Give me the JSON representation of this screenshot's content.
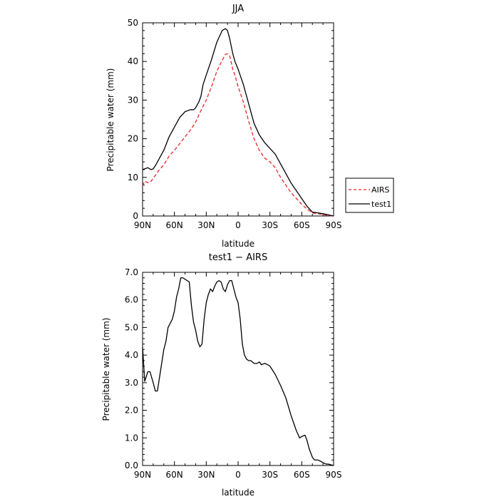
{
  "chart_data": [
    {
      "type": "line",
      "title": "JJA",
      "xlabel": "latitude",
      "ylabel": "Precipitable water (mm)",
      "xlim": [
        90,
        -90
      ],
      "ylim": [
        0,
        50
      ],
      "x_ticks": [
        90,
        60,
        30,
        0,
        -30,
        -60,
        -90
      ],
      "x_tick_labels": [
        "90N",
        "60N",
        "30N",
        "0",
        "30S",
        "60S",
        "90S"
      ],
      "y_ticks": [
        0,
        10,
        20,
        30,
        40,
        50
      ],
      "y_tick_labels": [
        "0",
        "10",
        "20",
        "30",
        "40",
        "50"
      ],
      "grid": false,
      "legend_position": "right",
      "series": [
        {
          "name": "AIRS",
          "color": "#e8262a",
          "dash": "dashed",
          "x": [
            90,
            88,
            85,
            82,
            78,
            75,
            70,
            65,
            60,
            55,
            50,
            45,
            40,
            35,
            30,
            25,
            20,
            15,
            12,
            10,
            8,
            5,
            3,
            0,
            -5,
            -10,
            -15,
            -20,
            -25,
            -30,
            -35,
            -40,
            -45,
            -50,
            -55,
            -60,
            -65,
            -70,
            -75,
            -80,
            -85,
            -90
          ],
          "y": [
            7.8,
            9,
            8.6,
            9,
            10.5,
            11.7,
            13.2,
            15.5,
            17,
            18.7,
            20.5,
            22.2,
            24.3,
            27.3,
            30,
            33.5,
            37.5,
            40.3,
            41.8,
            42,
            41.5,
            38,
            36.5,
            33.5,
            29.5,
            24.5,
            20,
            17,
            15,
            14,
            12.5,
            10,
            8,
            6,
            4.5,
            3,
            1.8,
            0.8,
            0.6,
            0.4,
            0.1,
            0
          ]
        },
        {
          "name": "test1",
          "color": "#000000",
          "dash": "solid",
          "x": [
            90,
            88,
            85,
            82,
            80,
            78,
            75,
            70,
            65,
            60,
            55,
            50,
            45,
            42,
            40,
            37,
            35,
            33,
            30,
            25,
            20,
            15,
            12,
            10,
            8,
            5,
            3,
            0,
            -5,
            -10,
            -15,
            -20,
            -25,
            -30,
            -35,
            -40,
            -45,
            -50,
            -55,
            -60,
            -65,
            -70,
            -75,
            -80,
            -85,
            -90
          ],
          "y": [
            12,
            12.2,
            12.5,
            12,
            12.2,
            13,
            14.5,
            17,
            20.5,
            23,
            25.5,
            27,
            27.5,
            27.5,
            28,
            29.5,
            31,
            34,
            36.5,
            40.5,
            45,
            48,
            48.5,
            48,
            46,
            42,
            40,
            38,
            34,
            29,
            24,
            21,
            19,
            17.5,
            16,
            13.5,
            11,
            8.5,
            6.5,
            4.5,
            2.5,
            1,
            0.8,
            0.6,
            0.3,
            0
          ]
        }
      ]
    },
    {
      "type": "line",
      "title": "test1 − AIRS",
      "xlabel": "latitude",
      "ylabel": "Precipitable water (mm)",
      "xlim": [
        90,
        -90
      ],
      "ylim": [
        0,
        7
      ],
      "x_ticks": [
        90,
        60,
        30,
        0,
        -30,
        -60,
        -90
      ],
      "x_tick_labels": [
        "90N",
        "60N",
        "30N",
        "0",
        "30S",
        "60S",
        "90S"
      ],
      "y_ticks": [
        0,
        1,
        2,
        3,
        4,
        5,
        6,
        7
      ],
      "y_tick_labels": [
        "0.0",
        "1.0",
        "2.0",
        "3.0",
        "4.0",
        "5.0",
        "6.0",
        "7.0"
      ],
      "grid": false,
      "series": [
        {
          "name": "",
          "color": "#000000",
          "dash": "solid",
          "x": [
            90,
            88,
            85,
            83,
            80,
            78,
            76,
            74,
            72,
            70,
            68,
            66,
            62,
            60,
            58,
            56,
            54,
            52,
            50,
            48,
            46,
            44,
            42,
            40,
            38,
            36,
            34,
            32,
            30,
            28,
            26,
            24,
            22,
            20,
            18,
            16,
            14,
            12,
            10,
            8,
            6,
            4,
            2,
            0,
            -2,
            -4,
            -6,
            -8,
            -10,
            -12,
            -15,
            -18,
            -20,
            -22,
            -25,
            -28,
            -30,
            -35,
            -40,
            -45,
            -50,
            -55,
            -58,
            -60,
            -63,
            -65,
            -67,
            -70,
            -72,
            -75,
            -78,
            -80,
            -83,
            -85,
            -88,
            -90
          ],
          "y": [
            4.3,
            3.05,
            3.4,
            3.4,
            3.0,
            2.7,
            2.7,
            3.2,
            3.7,
            4.2,
            4.5,
            5.0,
            5.3,
            5.6,
            6.1,
            6.4,
            6.8,
            6.8,
            6.75,
            6.7,
            6.65,
            5.8,
            5.2,
            4.9,
            4.5,
            4.3,
            4.4,
            5.3,
            5.9,
            6.2,
            6.4,
            6.3,
            6.5,
            6.65,
            6.7,
            6.65,
            6.4,
            6.3,
            6.55,
            6.7,
            6.7,
            6.4,
            6.1,
            5.9,
            5.3,
            4.4,
            4.0,
            3.85,
            3.8,
            3.8,
            3.7,
            3.7,
            3.75,
            3.65,
            3.7,
            3.65,
            3.6,
            3.3,
            2.9,
            2.45,
            1.8,
            1.25,
            1.0,
            1.05,
            1.1,
            0.9,
            0.6,
            0.3,
            0.2,
            0.2,
            0.15,
            0.1,
            0.05,
            0.05,
            0.02,
            0.0
          ]
        }
      ]
    }
  ],
  "legend": {
    "items": [
      {
        "label": "AIRS",
        "color": "#e8262a",
        "dash": "dashed"
      },
      {
        "label": "test1",
        "color": "#000000",
        "dash": "solid"
      }
    ]
  }
}
